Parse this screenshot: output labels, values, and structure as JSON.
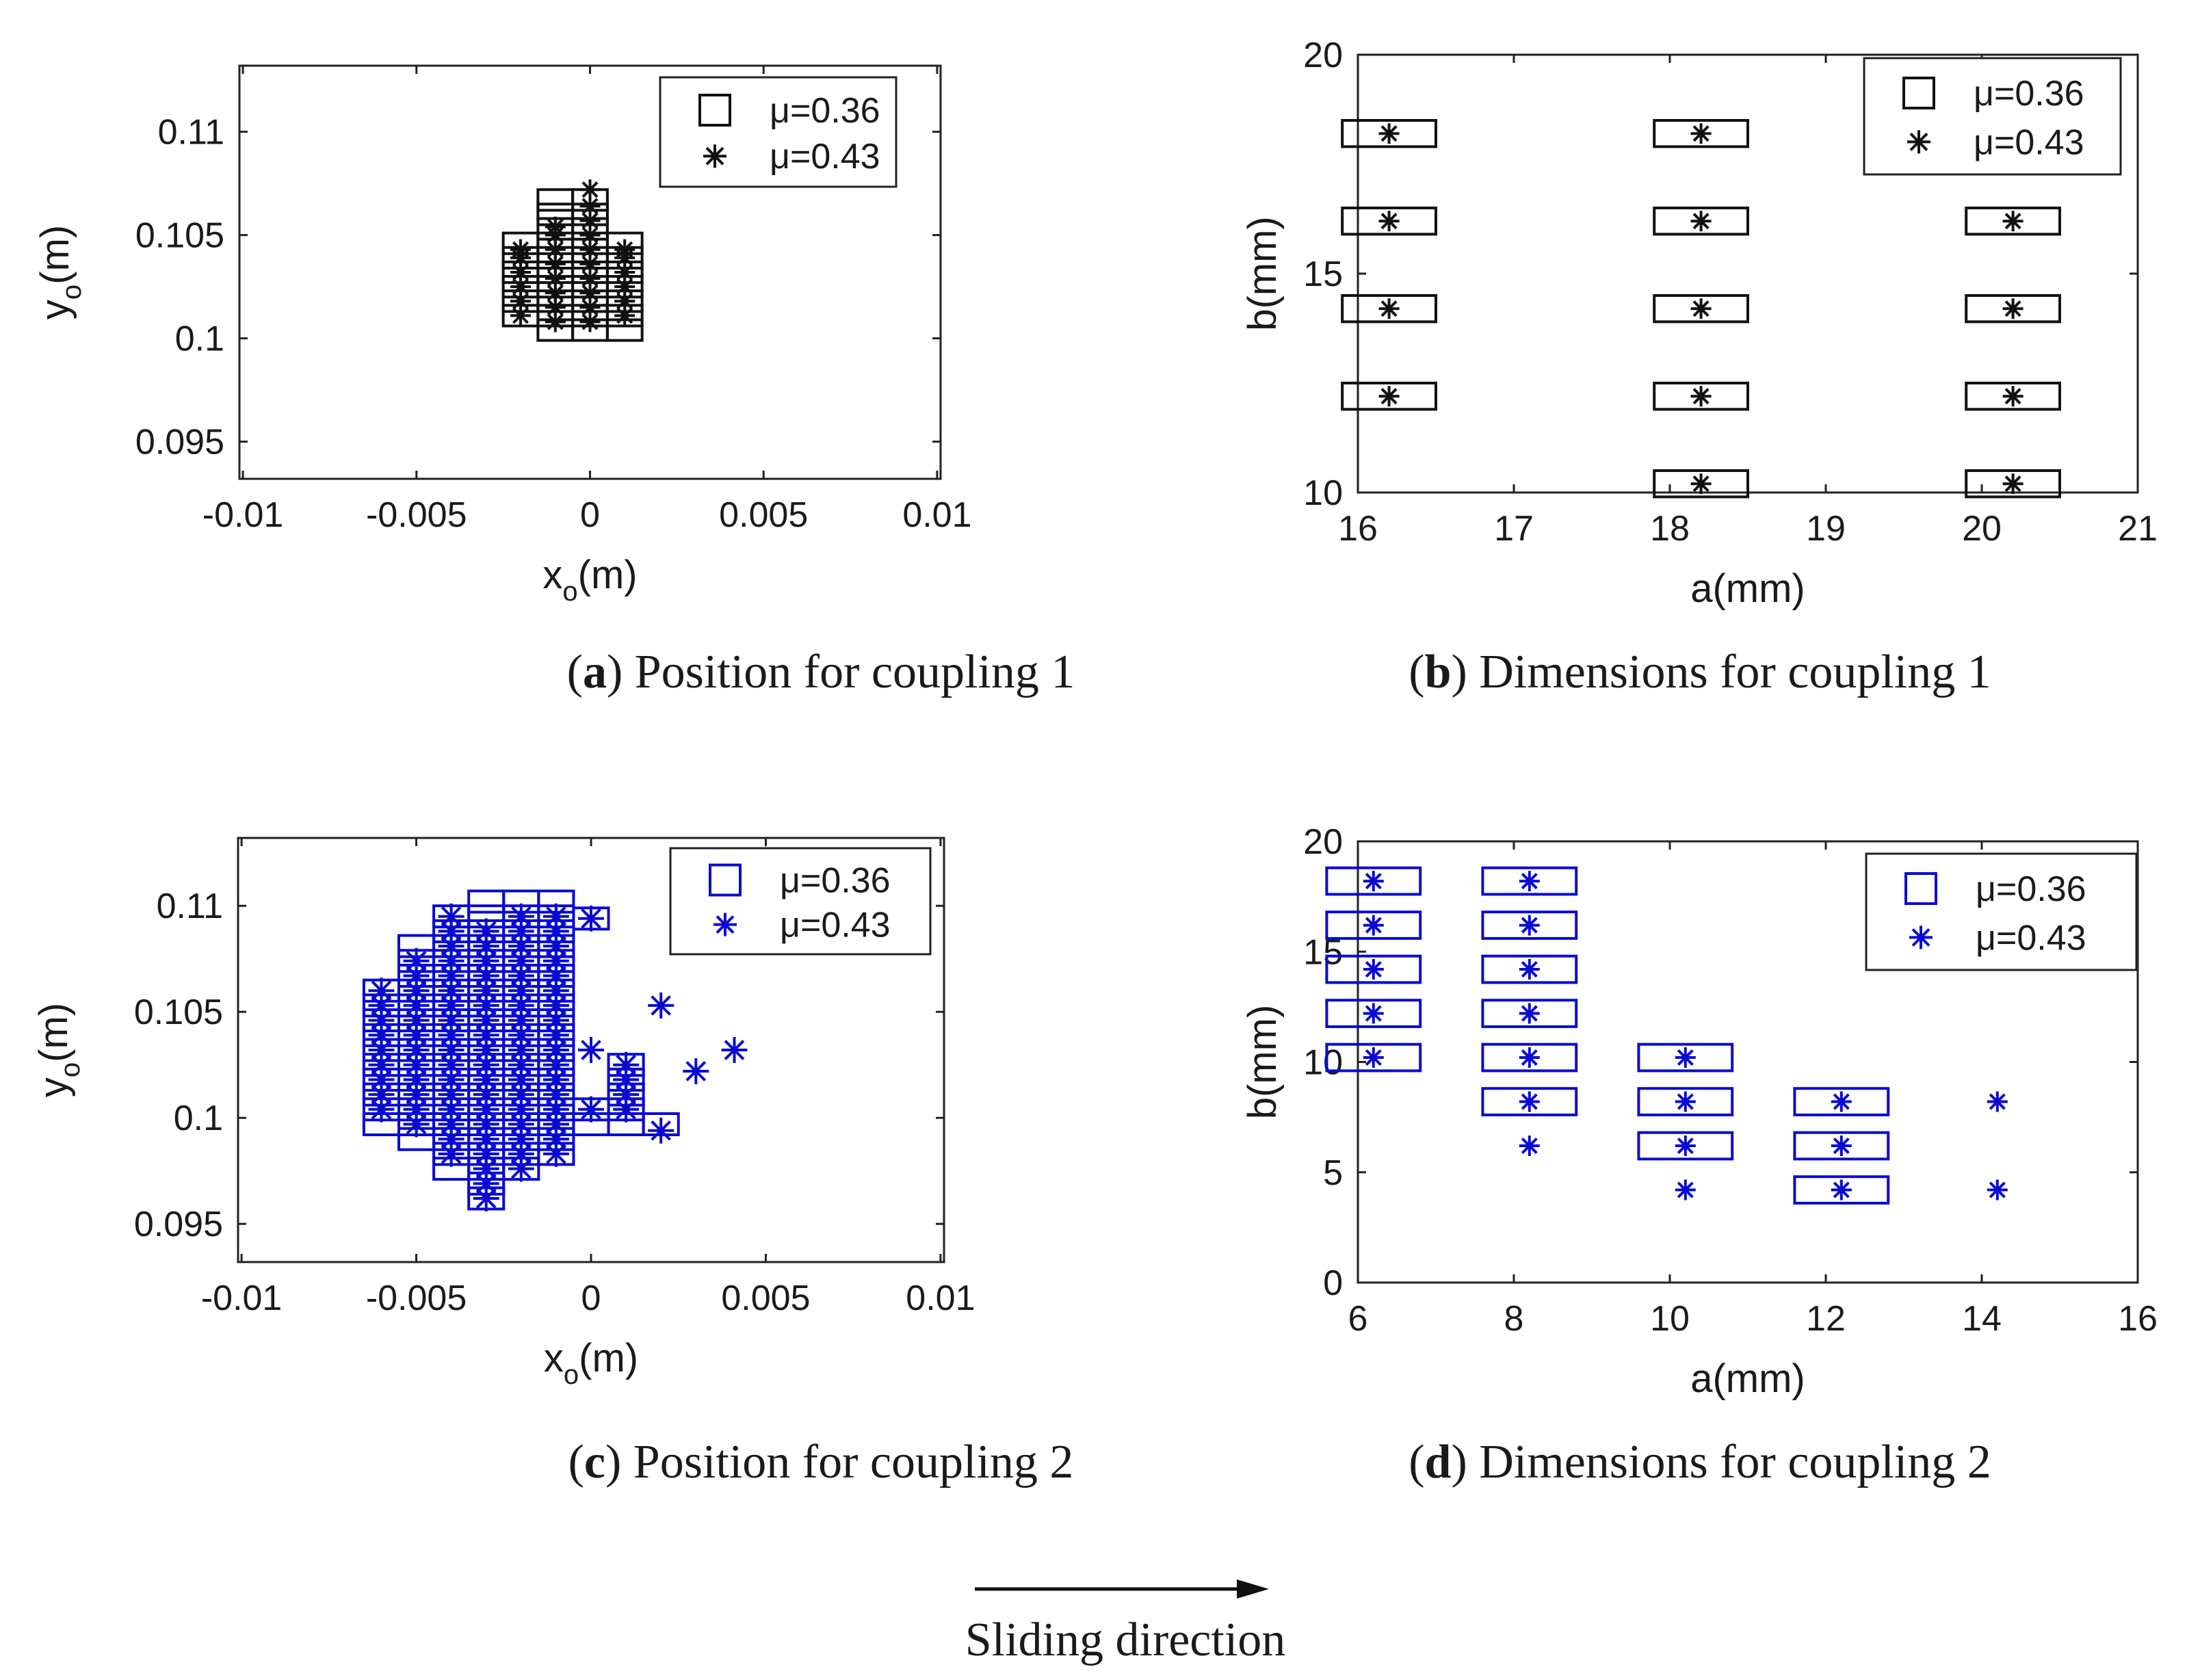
{
  "colors": {
    "black": "#111111",
    "blue": "#0a0ad2"
  },
  "figure": {
    "arrow_caption": "Sliding direction"
  },
  "chart_data": [
    {
      "id": "a",
      "type": "scatter",
      "caption_letter": "a",
      "caption_text": "Position for coupling 1",
      "color": "#111111",
      "xlabel": "x",
      "xlabel_sub": "o",
      "xlabel_unit": "(m)",
      "ylabel": "y",
      "ylabel_sub": "o",
      "ylabel_unit": "(m)",
      "xlim": [
        -0.0101,
        0.0101
      ],
      "ylim": [
        0.0932,
        0.1132
      ],
      "xticks": [
        -0.01,
        -0.005,
        0,
        0.005,
        0.01
      ],
      "xtick_labels": [
        "-0.01",
        "-0.005",
        "0",
        "0.005",
        "0.01"
      ],
      "yticks": [
        0.095,
        0.1,
        0.105,
        0.11
      ],
      "ytick_labels": [
        "0.095",
        "0.1",
        "0.105",
        "0.11"
      ],
      "marker_size": 0.001,
      "legend_position": "top-right",
      "series": [
        {
          "name": "μ=0.36",
          "marker": "square",
          "points": [
            [
              -0.002,
              0.1011
            ],
            [
              -0.002,
              0.1018
            ],
            [
              -0.002,
              0.1025
            ],
            [
              -0.002,
              0.1032
            ],
            [
              -0.002,
              0.1039
            ],
            [
              -0.002,
              0.1046
            ],
            [
              -0.001,
              0.1004
            ],
            [
              -0.001,
              0.1011
            ],
            [
              -0.001,
              0.1018
            ],
            [
              -0.001,
              0.1025
            ],
            [
              -0.001,
              0.1032
            ],
            [
              -0.001,
              0.1039
            ],
            [
              -0.001,
              0.1046
            ],
            [
              -0.001,
              0.1053
            ],
            [
              -0.001,
              0.106
            ],
            [
              -0.001,
              0.1067
            ],
            [
              0,
              0.1004
            ],
            [
              0,
              0.1011
            ],
            [
              0,
              0.1018
            ],
            [
              0,
              0.1025
            ],
            [
              0,
              0.1032
            ],
            [
              0,
              0.1039
            ],
            [
              0,
              0.1046
            ],
            [
              0,
              0.1053
            ],
            [
              0,
              0.106
            ],
            [
              0,
              0.1067
            ],
            [
              0.001,
              0.1004
            ],
            [
              0.001,
              0.1011
            ],
            [
              0.001,
              0.1018
            ],
            [
              0.001,
              0.1025
            ],
            [
              0.001,
              0.1032
            ],
            [
              0.001,
              0.1039
            ],
            [
              0.001,
              0.1046
            ]
          ]
        },
        {
          "name": "μ=0.43",
          "marker": "asterisk",
          "points": [
            [
              -0.002,
              0.1011
            ],
            [
              -0.002,
              0.1018
            ],
            [
              -0.002,
              0.1025
            ],
            [
              -0.002,
              0.1032
            ],
            [
              -0.002,
              0.1039
            ],
            [
              -0.002,
              0.1043
            ],
            [
              -0.001,
              0.1008
            ],
            [
              -0.001,
              0.1015
            ],
            [
              -0.001,
              0.1022
            ],
            [
              -0.001,
              0.1029
            ],
            [
              -0.001,
              0.1036
            ],
            [
              -0.001,
              0.1043
            ],
            [
              -0.001,
              0.105
            ],
            [
              -0.001,
              0.1054
            ],
            [
              0,
              0.1008
            ],
            [
              0,
              0.1015
            ],
            [
              0,
              0.1022
            ],
            [
              0,
              0.1029
            ],
            [
              0,
              0.1036
            ],
            [
              0,
              0.1043
            ],
            [
              0,
              0.105
            ],
            [
              0,
              0.1057
            ],
            [
              0,
              0.1064
            ],
            [
              0,
              0.1072
            ],
            [
              0.001,
              0.1011
            ],
            [
              0.001,
              0.1018
            ],
            [
              0.001,
              0.1025
            ],
            [
              0.001,
              0.1032
            ],
            [
              0.001,
              0.1039
            ],
            [
              0.001,
              0.1043
            ]
          ]
        }
      ]
    },
    {
      "id": "b",
      "type": "scatter",
      "caption_letter": "b",
      "caption_text": "Dimensions for coupling 1",
      "color": "#111111",
      "xlabel": "a(mm)",
      "ylabel": "b(mm)",
      "xlim": [
        16,
        21
      ],
      "ylim": [
        10,
        20
      ],
      "xticks": [
        16,
        17,
        18,
        19,
        20,
        21
      ],
      "xtick_labels": [
        "16",
        "17",
        "18",
        "19",
        "20",
        "21"
      ],
      "yticks": [
        10,
        15,
        20
      ],
      "ytick_labels": [
        "10",
        "15",
        "20"
      ],
      "marker_size": 0.6,
      "legend_position": "top-right",
      "series": [
        {
          "name": "μ=0.36",
          "marker": "square",
          "points": [
            [
              16.2,
              12.2
            ],
            [
              16.2,
              14.2
            ],
            [
              16.2,
              16.2
            ],
            [
              16.2,
              18.2
            ],
            [
              18.2,
              10.2
            ],
            [
              18.2,
              12.2
            ],
            [
              18.2,
              14.2
            ],
            [
              18.2,
              16.2
            ],
            [
              18.2,
              18.2
            ],
            [
              20.2,
              10.2
            ],
            [
              20.2,
              12.2
            ],
            [
              20.2,
              14.2
            ],
            [
              20.2,
              16.2
            ]
          ]
        },
        {
          "name": "μ=0.43",
          "marker": "asterisk",
          "points": [
            [
              16.2,
              12.2
            ],
            [
              16.2,
              14.2
            ],
            [
              16.2,
              16.2
            ],
            [
              16.2,
              18.2
            ],
            [
              18.2,
              10.2
            ],
            [
              18.2,
              12.2
            ],
            [
              18.2,
              14.2
            ],
            [
              18.2,
              16.2
            ],
            [
              18.2,
              18.2
            ],
            [
              20.2,
              10.2
            ],
            [
              20.2,
              12.2
            ],
            [
              20.2,
              14.2
            ],
            [
              20.2,
              16.2
            ]
          ]
        }
      ]
    },
    {
      "id": "c",
      "type": "scatter",
      "caption_letter": "c",
      "caption_text": "Position for coupling 2",
      "color": "#0a0ad2",
      "xlabel": "x",
      "xlabel_sub": "o",
      "xlabel_unit": "(m)",
      "ylabel": "y",
      "ylabel_sub": "o",
      "ylabel_unit": "(m)",
      "xlim": [
        -0.0101,
        0.0101
      ],
      "ylim": [
        0.0932,
        0.1132
      ],
      "xticks": [
        -0.01,
        -0.005,
        0,
        0.005,
        0.01
      ],
      "xtick_labels": [
        "-0.01",
        "-0.005",
        "0",
        "0.005",
        "0.01"
      ],
      "yticks": [
        0.095,
        0.1,
        0.105,
        0.11
      ],
      "ytick_labels": [
        "0.095",
        "0.1",
        "0.105",
        "0.11"
      ],
      "marker_size": 0.001,
      "legend_position": "top-right",
      "series": [
        {
          "name": "μ=0.36",
          "marker": "square",
          "grid": [
            {
              "x": -0.006,
              "y_from": 0.0997,
              "y_to": 0.1066
            },
            {
              "x": -0.005,
              "y_from": 0.099,
              "y_to": 0.1087
            },
            {
              "x": -0.004,
              "y_from": 0.0976,
              "y_to": 0.1101
            },
            {
              "x": -0.003,
              "y_from": 0.0962,
              "y_to": 0.1108
            },
            {
              "x": -0.002,
              "y_from": 0.0976,
              "y_to": 0.1108
            },
            {
              "x": -0.001,
              "y_from": 0.0983,
              "y_to": 0.1108
            },
            {
              "x": 0,
              "y_from": 0.0997,
              "y_to": 0.1004
            },
            {
              "x": 0,
              "y_from": 0.1094,
              "y_to": 0.1094
            },
            {
              "x": 0.001,
              "y_from": 0.0997,
              "y_to": 0.1025
            },
            {
              "x": 0.002,
              "y_from": 0.0997,
              "y_to": 0.0997
            }
          ]
        },
        {
          "name": "μ=0.43",
          "marker": "asterisk",
          "grid": [
            {
              "x": -0.006,
              "y_from": 0.1004,
              "y_to": 0.1066
            },
            {
              "x": -0.005,
              "y_from": 0.0997,
              "y_to": 0.108
            },
            {
              "x": -0.004,
              "y_from": 0.0983,
              "y_to": 0.1101
            },
            {
              "x": -0.003,
              "y_from": 0.0962,
              "y_to": 0.1094
            },
            {
              "x": -0.002,
              "y_from": 0.0976,
              "y_to": 0.1101
            },
            {
              "x": -0.001,
              "y_from": 0.0983,
              "y_to": 0.1101
            },
            {
              "x": 0,
              "y_from": 0.1004,
              "y_to": 0.1004
            },
            {
              "x": 0,
              "y_from": 0.1094,
              "y_to": 0.1094
            },
            {
              "x": 0.001,
              "y_from": 0.1004,
              "y_to": 0.1025
            }
          ],
          "points": [
            [
              0,
              0.1032
            ],
            [
              0.002,
              0.0994
            ],
            [
              0.002,
              0.1053
            ],
            [
              0.003,
              0.1022
            ],
            [
              0.0041,
              0.1032
            ]
          ]
        }
      ]
    },
    {
      "id": "d",
      "type": "scatter",
      "caption_letter": "d",
      "caption_text": "Dimensions for coupling 2",
      "color": "#0a0ad2",
      "xlabel": "a(mm)",
      "ylabel": "b(mm)",
      "xlim": [
        6,
        16
      ],
      "ylim": [
        0,
        20
      ],
      "xticks": [
        6,
        8,
        10,
        12,
        14,
        16
      ],
      "xtick_labels": [
        "6",
        "8",
        "10",
        "12",
        "14",
        "16"
      ],
      "yticks": [
        0,
        5,
        10,
        15,
        20
      ],
      "ytick_labels": [
        "0",
        "5",
        "10",
        "15",
        "20"
      ],
      "marker_size": 1.2,
      "legend_position": "top-right",
      "series": [
        {
          "name": "μ=0.36",
          "marker": "square",
          "points": [
            [
              6.2,
              10.2
            ],
            [
              6.2,
              12.2
            ],
            [
              6.2,
              14.2
            ],
            [
              6.2,
              16.2
            ],
            [
              6.2,
              18.2
            ],
            [
              8.2,
              8.2
            ],
            [
              8.2,
              10.2
            ],
            [
              8.2,
              12.2
            ],
            [
              8.2,
              14.2
            ],
            [
              8.2,
              16.2
            ],
            [
              8.2,
              18.2
            ],
            [
              10.2,
              6.2
            ],
            [
              10.2,
              8.2
            ],
            [
              10.2,
              10.2
            ],
            [
              12.2,
              4.2
            ],
            [
              12.2,
              6.2
            ],
            [
              12.2,
              8.2
            ]
          ]
        },
        {
          "name": "μ=0.43",
          "marker": "asterisk",
          "points": [
            [
              6.2,
              10.2
            ],
            [
              6.2,
              12.2
            ],
            [
              6.2,
              14.2
            ],
            [
              6.2,
              16.2
            ],
            [
              6.2,
              18.2
            ],
            [
              8.2,
              6.2
            ],
            [
              8.2,
              8.2
            ],
            [
              8.2,
              10.2
            ],
            [
              8.2,
              12.2
            ],
            [
              8.2,
              14.2
            ],
            [
              8.2,
              16.2
            ],
            [
              8.2,
              18.2
            ],
            [
              10.2,
              4.2
            ],
            [
              10.2,
              6.2
            ],
            [
              10.2,
              8.2
            ],
            [
              10.2,
              10.2
            ],
            [
              12.2,
              4.2
            ],
            [
              12.2,
              6.2
            ],
            [
              12.2,
              8.2
            ],
            [
              14.2,
              4.2
            ],
            [
              14.2,
              8.2
            ]
          ]
        }
      ]
    }
  ]
}
